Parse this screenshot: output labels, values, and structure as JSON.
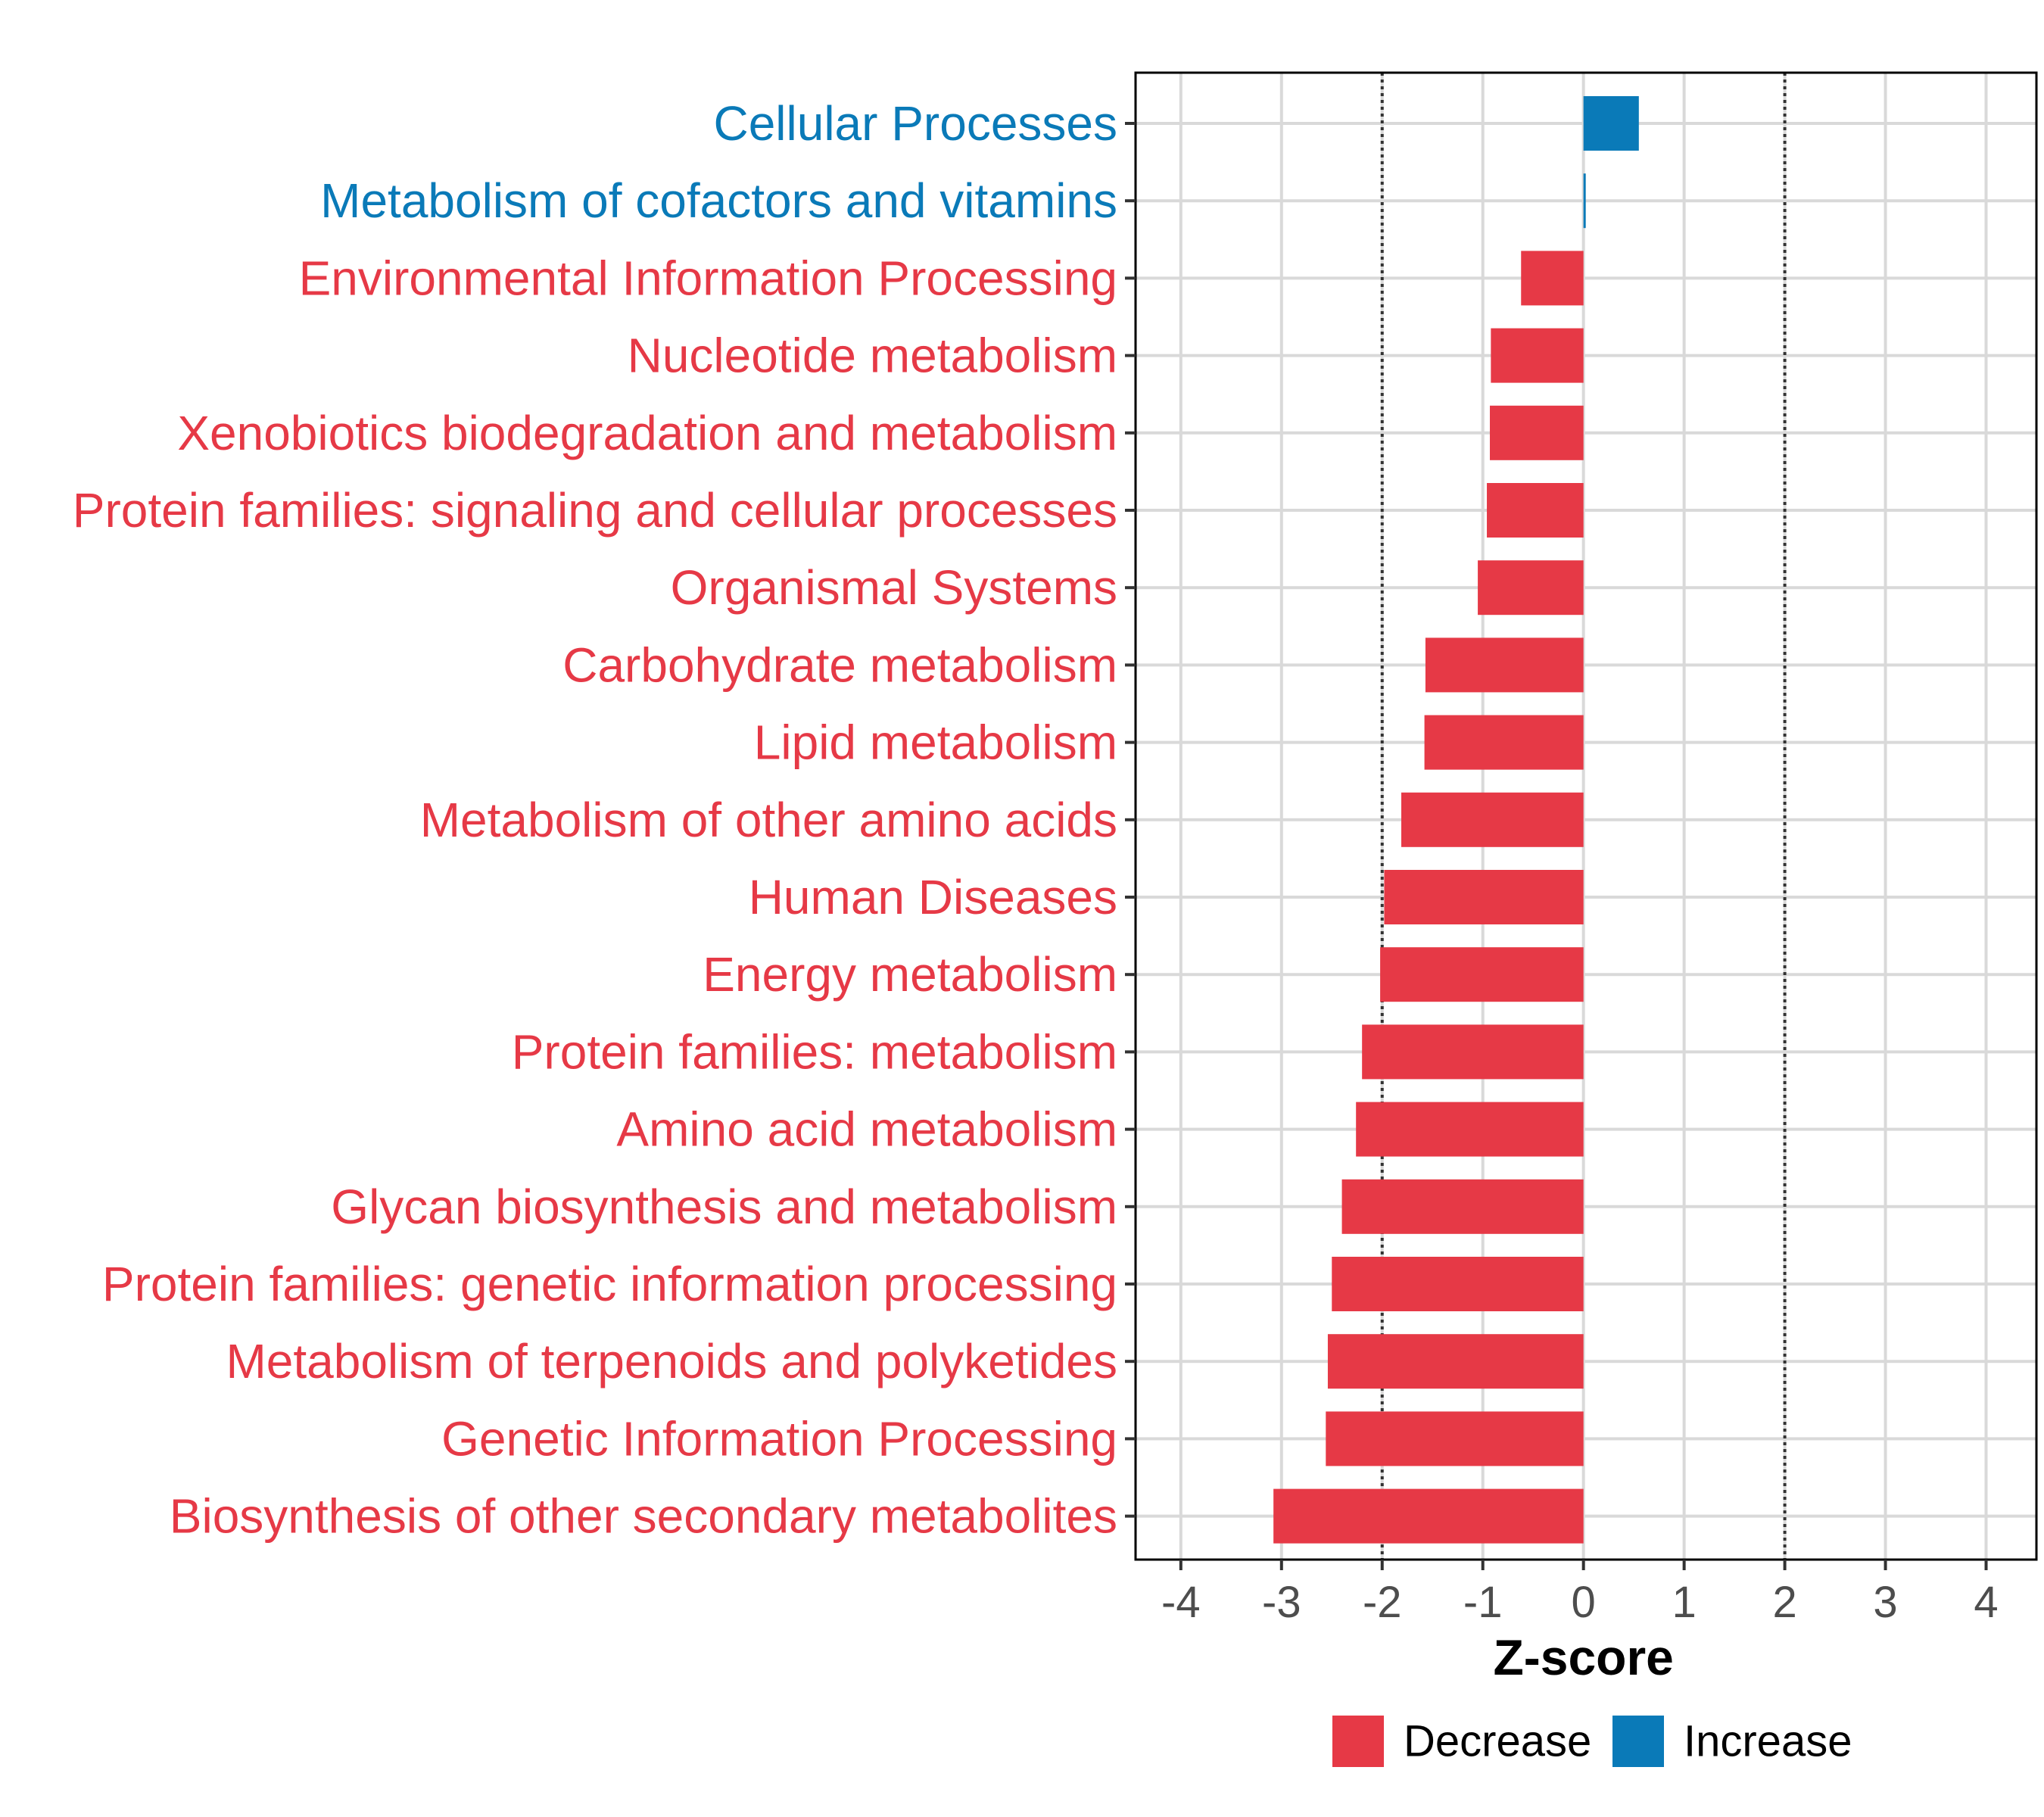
{
  "chart_data": {
    "type": "bar",
    "orientation": "horizontal",
    "title": "",
    "xlabel": "Z-score",
    "ylabel": "",
    "xlim": [
      -4.45,
      4.5
    ],
    "xticks": [
      -4,
      -3,
      -2,
      -1,
      0,
      1,
      2,
      3,
      4
    ],
    "xtick_labels": [
      "-4",
      "-3",
      "-2",
      "-1",
      "0",
      "1",
      "2",
      "3",
      "4"
    ],
    "threshold_lines": [
      -2,
      2
    ],
    "grid": true,
    "legend_position": "bottom",
    "categories": [
      "Cellular Processes",
      "Metabolism of cofactors and vitamins",
      "Environmental Information Processing",
      "Nucleotide metabolism",
      "Xenobiotics biodegradation and metabolism",
      "Protein families: signaling and cellular processes",
      "Organismal Systems",
      "Carbohydrate metabolism",
      "Lipid metabolism",
      "Metabolism of other amino acids",
      "Human Diseases",
      "Energy metabolism",
      "Protein families: metabolism",
      "Amino acid metabolism",
      "Glycan biosynthesis and metabolism",
      "Protein families: genetic information processing",
      "Metabolism of terpenoids and polyketides",
      "Genetic Information Processing",
      "Biosynthesis of other secondary metabolites"
    ],
    "values": [
      0.55,
      0.02,
      -0.62,
      -0.92,
      -0.93,
      -0.96,
      -1.05,
      -1.57,
      -1.58,
      -1.81,
      -1.98,
      -2.02,
      -2.2,
      -2.26,
      -2.4,
      -2.5,
      -2.54,
      -2.56,
      -3.08
    ],
    "series": [
      {
        "name": "Decrease",
        "color": "#E63946"
      },
      {
        "name": "Increase",
        "color": "#0A7AB8"
      }
    ]
  },
  "colors": {
    "decrease": "#E63946",
    "increase": "#0A7AB8",
    "grid": "#d9d9d9",
    "threshold": "#333333"
  }
}
